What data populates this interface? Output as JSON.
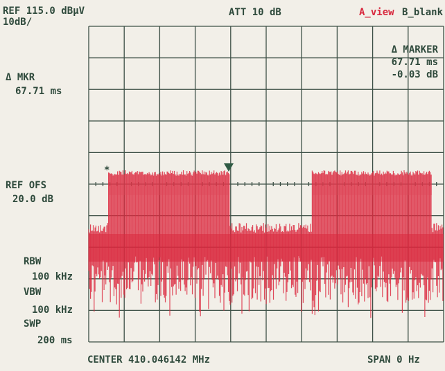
{
  "header": {
    "ref": "REF 115.0 dBµV",
    "scale": "10dB/",
    "att": "ATT 10 dB",
    "trace_a": "A_view",
    "trace_b": "B_blank"
  },
  "marker_left": {
    "label": "Δ MKR",
    "value": "67.71 ms"
  },
  "marker_right": {
    "label": "Δ MARKER",
    "time": "67.71 ms",
    "level": "-0.03 dB"
  },
  "ref_offset": {
    "label": "REF OFS",
    "value": "20.0 dB"
  },
  "settings": {
    "rbw_label": "RBW",
    "rbw": "100 kHz",
    "vbw_label": "VBW",
    "vbw": "100 kHz",
    "swp_label": "SWP",
    "swp": "200 ms"
  },
  "footer": {
    "center": "CENTER 410.046142 MHz",
    "span": "SPAN 0 Hz"
  }
}
